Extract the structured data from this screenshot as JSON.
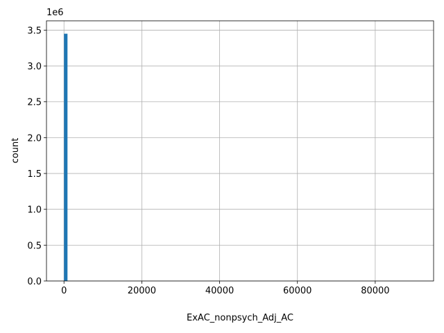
{
  "chart_data": {
    "type": "histogram",
    "xlabel": "ExAC_nonpsych_Adj_AC",
    "ylabel": "count",
    "y_offset_label": "1e6",
    "color": "#1f77b4",
    "grid": true,
    "bins": [
      0,
      900,
      1800,
      2700,
      3600,
      4500,
      5400,
      6300,
      7200,
      8100,
      9000,
      9900,
      10800,
      11700,
      12600,
      13500,
      14400,
      15300,
      16200,
      17100,
      18000,
      18900,
      19800,
      20700,
      21600,
      22500,
      23400,
      24300,
      25200,
      26100,
      27000,
      27900,
      28800,
      29700,
      30600,
      31500,
      32400,
      33300,
      34200,
      35100,
      36000,
      36900,
      37800,
      38700,
      39600,
      40500,
      41400,
      42300,
      43200,
      44100,
      45000,
      45900,
      46800,
      47700,
      48600,
      49500,
      50400,
      51300,
      52200,
      53100,
      54000,
      54900,
      55800,
      56700,
      57600,
      58500,
      59400,
      60300,
      61200,
      62100,
      63000,
      63900,
      64800,
      65700,
      66600,
      67500,
      68400,
      69300,
      70200,
      71100,
      72000,
      72900,
      73800,
      74700,
      75600,
      76500,
      77400,
      78300,
      79200,
      80100,
      81000,
      81900,
      82800,
      83700,
      84600,
      85500,
      86400,
      87300,
      88200,
      89100,
      90000
    ],
    "values": [
      3450000,
      0,
      0,
      0,
      0,
      0,
      0,
      0,
      0,
      0,
      0,
      0,
      0,
      0,
      0,
      0,
      0,
      0,
      0,
      0,
      0,
      0,
      0,
      0,
      0,
      0,
      0,
      0,
      0,
      0,
      0,
      0,
      0,
      0,
      0,
      0,
      0,
      0,
      0,
      0,
      0,
      0,
      0,
      0,
      0,
      0,
      0,
      0,
      0,
      0,
      0,
      0,
      0,
      0,
      0,
      0,
      0,
      0,
      0,
      0,
      0,
      0,
      0,
      0,
      0,
      0,
      0,
      0,
      0,
      0,
      0,
      0,
      0,
      0,
      0,
      0,
      0,
      0,
      0,
      0,
      0,
      0,
      0,
      0,
      0,
      0,
      0,
      0,
      0,
      0,
      0,
      0,
      0,
      0,
      0,
      0,
      0,
      0,
      0,
      0
    ],
    "xlim": [
      -4500,
      95000
    ],
    "xticks": [
      0,
      20000,
      40000,
      60000,
      80000
    ],
    "ylim": [
      0,
      3630000
    ],
    "yticks": [
      {
        "value": 0,
        "label": "0.0"
      },
      {
        "value": 500000,
        "label": "0.5"
      },
      {
        "value": 1000000,
        "label": "1.0"
      },
      {
        "value": 1500000,
        "label": "1.5"
      },
      {
        "value": 2000000,
        "label": "2.0"
      },
      {
        "value": 2500000,
        "label": "2.5"
      },
      {
        "value": 3000000,
        "label": "3.0"
      },
      {
        "value": 3500000,
        "label": "3.5"
      }
    ]
  }
}
